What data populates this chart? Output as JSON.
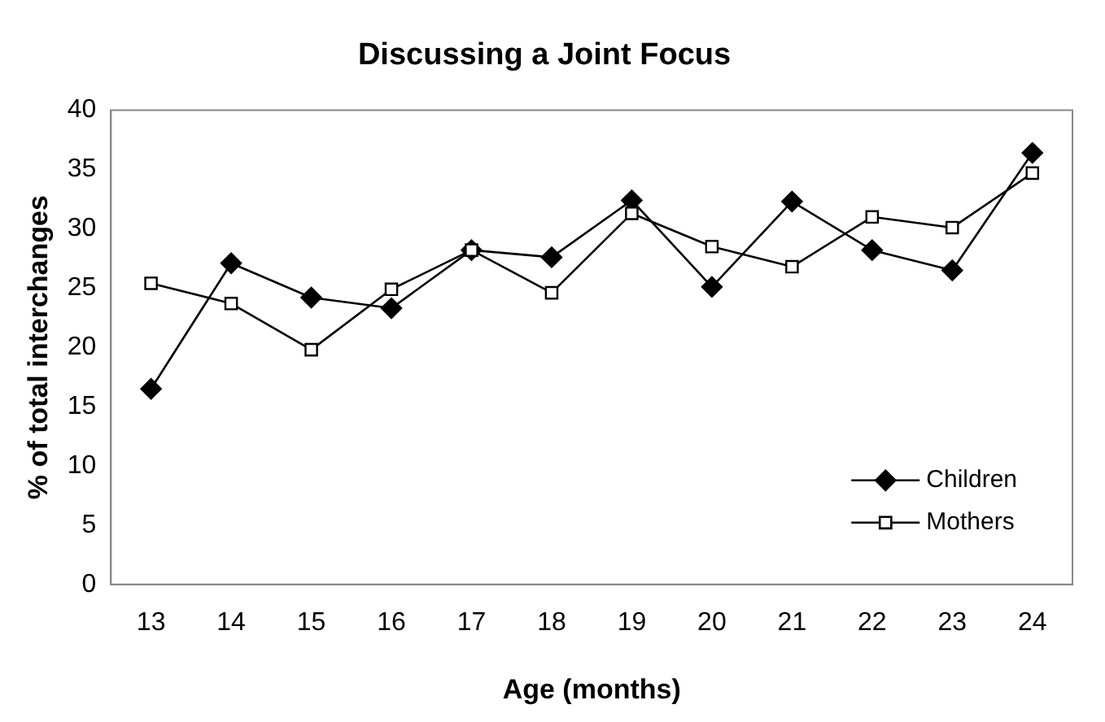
{
  "chart_data": {
    "type": "line",
    "title": "Discussing a Joint Focus",
    "xlabel": "Age (months)",
    "ylabel": "% of total interchanges",
    "categories": [
      "13",
      "14",
      "15",
      "16",
      "17",
      "18",
      "19",
      "20",
      "21",
      "22",
      "23",
      "24"
    ],
    "series": [
      {
        "name": "Children",
        "color": "#000000",
        "marker": "diamond",
        "values": [
          16.5,
          27.1,
          24.2,
          23.3,
          28.2,
          27.6,
          32.4,
          25.1,
          32.3,
          28.2,
          26.5,
          36.4
        ]
      },
      {
        "name": "Mothers",
        "color": "#000000",
        "marker": "square",
        "values": [
          25.4,
          23.7,
          19.8,
          24.9,
          28.2,
          24.6,
          31.3,
          28.5,
          26.8,
          31.0,
          30.1,
          34.7
        ]
      }
    ],
    "ylim": [
      0,
      40
    ],
    "yticks": [
      0,
      5,
      10,
      15,
      20,
      25,
      30,
      35,
      40
    ],
    "grid": false,
    "legend": "bottom right",
    "line_style": "solid"
  }
}
